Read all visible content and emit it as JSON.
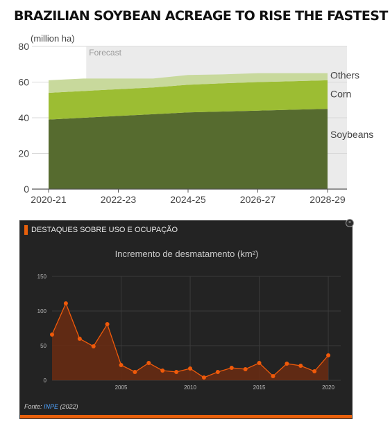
{
  "colors": {
    "soybeans": "#566b2f",
    "corn": "#9cbd33",
    "others": "#c8d99c",
    "forecast_band": "#ebebeb",
    "bottom_bg": "#232323",
    "bottom_accent": "#e8600c",
    "bottom_fill": "#6b2c12",
    "bottom_line": "#f05a0a"
  },
  "top": {
    "title": "BRAZILIAN SOYBEAN ACREAGE TO RISE THE FASTEST"
  },
  "bottom": {
    "header": "DESTAQUES SOBRE USO E OCUPAÇÃO",
    "close_icon": "close-icon",
    "source_prefix": "Fonte: ",
    "source_link": "INPE",
    "source_suffix": " (2022)"
  },
  "chart_data": [
    {
      "type": "area",
      "stacked": true,
      "title": "BRAZILIAN SOYBEAN ACREAGE TO RISE THE FASTEST",
      "ylabel": "(million ha)",
      "xlabel": "",
      "x": [
        "2020-21",
        "2021-22",
        "2022-23",
        "2023-24",
        "2024-25",
        "2025-26",
        "2026-27",
        "2027-28",
        "2028-29"
      ],
      "xtick_labels": [
        "2020-21",
        "2022-23",
        "2024-25",
        "2026-27",
        "2028-29"
      ],
      "ylim": [
        0,
        80
      ],
      "yticks": [
        0,
        20,
        40,
        60,
        80
      ],
      "forecast_label": "Forecast",
      "forecast_start": "2021-22",
      "grid": true,
      "legend": "labels at right end of areas",
      "series": [
        {
          "name": "Soybeans",
          "values": [
            39,
            40,
            41,
            42,
            43,
            43.5,
            44,
            44.5,
            45
          ]
        },
        {
          "name": "Corn",
          "values": [
            15,
            15,
            15,
            15,
            15.5,
            15.8,
            16,
            16,
            16
          ]
        },
        {
          "name": "Others",
          "values": [
            7,
            7,
            6,
            5,
            5.5,
            5,
            5,
            4.5,
            4
          ]
        }
      ]
    },
    {
      "type": "line",
      "title": "Incremento de desmatamento (km²)",
      "ylim": [
        0,
        150
      ],
      "yticks": [
        0,
        50,
        100,
        150
      ],
      "xticks": [
        2005,
        2010,
        2015,
        2020
      ],
      "xlim": [
        2000,
        2020.7
      ],
      "grid": true,
      "x": [
        2000,
        2001,
        2002,
        2003,
        2004,
        2005,
        2006,
        2007,
        2008,
        2009,
        2010,
        2011,
        2012,
        2013,
        2014,
        2015,
        2016,
        2017,
        2018,
        2019,
        2020
      ],
      "series": [
        {
          "values": [
            66,
            111,
            60,
            49,
            81,
            22,
            12,
            25,
            14,
            12,
            17,
            4,
            12,
            18,
            16,
            25,
            6,
            24,
            21,
            13,
            36
          ]
        }
      ]
    }
  ]
}
